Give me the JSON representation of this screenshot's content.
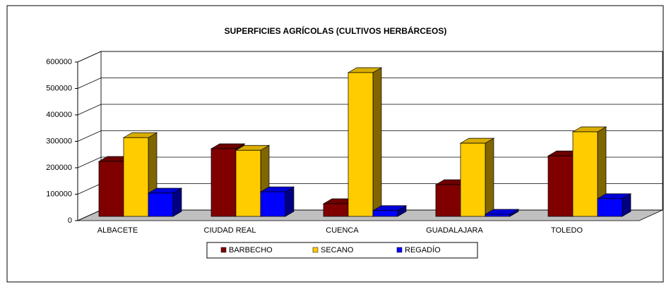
{
  "chart_data": {
    "type": "bar3d",
    "title": "SUPERFICIES AGRÍCOLAS (CULTIVOS HERBÁRCEOS)",
    "categories": [
      "ALBACETE",
      "CIUDAD REAL",
      "CUENCA",
      "GUADALAJARA",
      "TOLEDO"
    ],
    "series": [
      {
        "name": "BARBECHO",
        "color": "#800000",
        "values": [
          208000,
          256000,
          48000,
          120000,
          229000
        ]
      },
      {
        "name": "SECANO",
        "color": "#ffcc00",
        "values": [
          298000,
          250000,
          544000,
          277000,
          320000
        ]
      },
      {
        "name": "REGADÍO",
        "color": "#0000ff",
        "values": [
          88000,
          93000,
          22000,
          8000,
          67000
        ]
      }
    ],
    "ylim": [
      0,
      600000
    ],
    "yticks": [
      0,
      100000,
      200000,
      300000,
      400000,
      500000,
      600000
    ],
    "grid": true
  }
}
